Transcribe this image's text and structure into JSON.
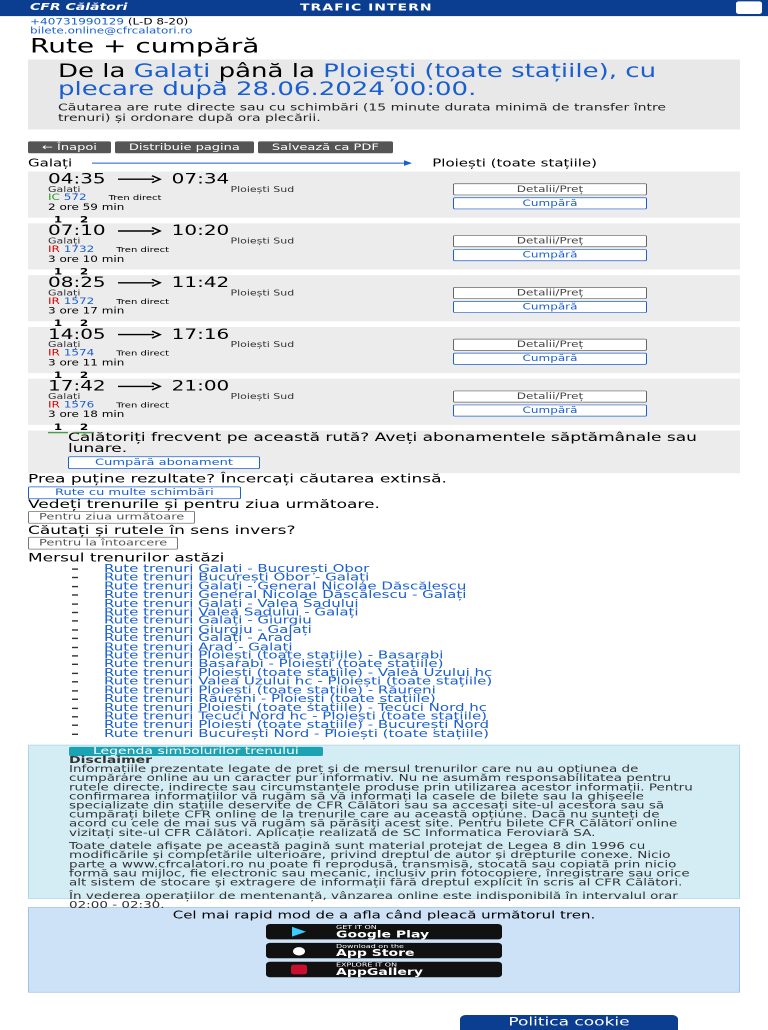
{
  "header": {
    "logo": "CFR Călători",
    "title": "TRAFIC INTERN"
  },
  "contact": {
    "phone": "+40731990129",
    "hours": "(L-D 8-20)",
    "email": "bilete.online@cfrcalatori.ro"
  },
  "page_title": "Rute + cumpără",
  "search": {
    "prefix": "De la",
    "from": "Galați",
    "mid": "până la",
    "to": "Ploiești (toate stațiile),",
    "depart_label": "cu plecare după",
    "datetime": "28.06.2024 00:00.",
    "note": "Căutarea are rute directe sau cu schimbări (15 minute durata minimă de transfer între trenuri) și ordonare după ora plecării."
  },
  "actions": [
    "← Înapoi",
    "Distribuie pagina",
    "Salvează ca PDF"
  ],
  "route": {
    "from": "Galați",
    "to": "Ploiești (toate stațiile)"
  },
  "trip_buttons": {
    "details": "Detalii/Preț",
    "buy": "Cumpără"
  },
  "trips": [
    {
      "departure": "04:35",
      "arrival": "07:34",
      "from": "Galați",
      "to": "Ploiești Sud",
      "train_type": "IC",
      "train_no": "572",
      "kind": "Tren direct",
      "duration": "2 ore 59 min",
      "classes": [
        "1",
        "2"
      ]
    },
    {
      "departure": "07:10",
      "arrival": "10:20",
      "from": "Galați",
      "to": "Ploiești Sud",
      "train_type": "IR",
      "train_no": "1732",
      "kind": "Tren direct",
      "duration": "3 ore 10 min",
      "classes": [
        "1",
        "2"
      ]
    },
    {
      "departure": "08:25",
      "arrival": "11:42",
      "from": "Galați",
      "to": "Ploiești Sud",
      "train_type": "IR",
      "train_no": "1572",
      "kind": "Tren direct",
      "duration": "3 ore 17 min",
      "classes": [
        "1",
        "2"
      ]
    },
    {
      "departure": "14:05",
      "arrival": "17:16",
      "from": "Galați",
      "to": "Ploiești Sud",
      "train_type": "IR",
      "train_no": "1574",
      "kind": "Tren direct",
      "duration": "3 ore 11 min",
      "classes": [
        "1",
        "2"
      ]
    },
    {
      "departure": "17:42",
      "arrival": "21:00",
      "from": "Galați",
      "to": "Ploiești Sud",
      "train_type": "IR",
      "train_no": "1576",
      "kind": "Tren direct",
      "duration": "3 ore 18 min",
      "classes": [
        "1",
        "2"
      ]
    }
  ],
  "frequent": {
    "text": "Călătoriți frecvent pe această rută? Aveți abonamentele săptămânale sau lunare.",
    "button": "Cumpără abonament"
  },
  "suggestions": [
    {
      "text": "Prea puține rezultate? Încercați căutarea extinsă.",
      "button": "Rute cu multe schimbări"
    },
    {
      "text": "Vedeți trenurile și pentru ziua următoare.",
      "button": "Pentru ziua următoare"
    },
    {
      "text": "Căutați și rutele în sens invers?",
      "button": "Pentru la întoarcere"
    }
  ],
  "schedule": {
    "title": "Mersul trenurilor astăzi",
    "links": [
      "Rute trenuri Galați - București Obor",
      "Rute trenuri București Obor - Galați",
      "Rute trenuri Galați - General Nicolae Dăscălescu",
      "Rute trenuri General Nicolae Dăscălescu - Galați",
      "Rute trenuri Galați - Valea Sadului",
      "Rute trenuri Valea Sadului - Galați",
      "Rute trenuri Galați - Giurgiu",
      "Rute trenuri Giurgiu - Galați",
      "Rute trenuri Galați - Arad",
      "Rute trenuri Arad - Galați",
      "Rute trenuri Ploiești (toate stațiile) - Basarabi",
      "Rute trenuri Basarabi - Ploiești (toate stațiile)",
      "Rute trenuri Ploiești (toate stațiile) - Valea Uzului hc",
      "Rute trenuri Valea Uzului hc - Ploiești (toate stațiile)",
      "Rute trenuri Ploiești (toate stațiile) - Răureni",
      "Rute trenuri Răureni - Ploiești (toate stațiile)",
      "Rute trenuri Ploiești (toate stațiile) - Tecuci Nord hc",
      "Rute trenuri Tecuci Nord hc - Ploiești (toate stațiile)",
      "Rute trenuri Ploiești (toate stațiile) - București Nord",
      "Rute trenuri București Nord - Ploiești (toate stațiile)"
    ]
  },
  "disclaimer": {
    "legend_button": "Legenda simbolurilor trenului",
    "title": "Disclaimer",
    "paragraphs": [
      "Informațiile prezentate legate de preț și de mersul trenurilor care nu au opțiunea de cumpărare online au un caracter pur informativ. Nu ne asumăm responsabilitatea pentru rutele directe, indirecte sau circumstanțele produse prin utilizarea acestor informații. Pentru confirmarea informațiilor vă rugăm să vă informați la casele de bilete sau la ghișeele specializate din stațiile deservite de CFR Călători sau sa accesați site-ul acestora sau să cumpărați bilete CFR online de la trenurile care au această opțiune. Dacă nu sunteți de acord cu cele de mai sus vă rugăm să părăsiți acest site. Pentru bilete CFR Călători online vizitați site-ul CFR Călători. Aplicație realizată de SC Informatica Feroviară SA.",
      "Toate datele afișate pe această pagină sunt material protejat de Legea 8 din 1996 cu modificările și completările ulterioare, privind dreptul de autor și drepturile conexe. Nicio parte a www.cfrcalatori.ro nu poate fi reprodusă, transmisă, stocată sau copiată prin nicio formă sau mijloc, fie electronic sau mecanic, inclusiv prin fotocopiere, înregistrare sau orice alt sistem de stocare și extragere de informații fără dreptul explicit în scris al CFR Călători.",
      "În vederea operațiilor de mentenanță, vânzarea online este indisponibilă în intervalul orar 02:00 - 02:30."
    ]
  },
  "apps": {
    "text": "Cel mai rapid mod de a afla când pleacă următorul tren.",
    "stores": [
      {
        "small": "GET IT ON",
        "name": "Google Play"
      },
      {
        "small": "Download on the",
        "name": "App Store"
      },
      {
        "small": "EXPLORE IT ON",
        "name": "AppGallery"
      }
    ]
  },
  "cookie_button": "Politica cookie"
}
